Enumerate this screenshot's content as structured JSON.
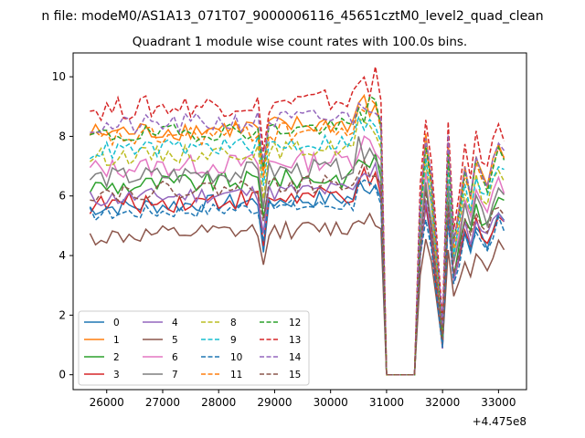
{
  "figure": {
    "suptitle": "n file: modeM0/AS1A13_071T07_9000006116_45651cztM0_level2_quad_clean",
    "offset_label": "+4.475e8"
  },
  "chart_data": {
    "type": "line",
    "title": "Quadrant 1 module wise count rates with 100.0s bins.",
    "xlabel": "",
    "ylabel": "",
    "x_offset": 447500000,
    "xlim": [
      25400,
      33500
    ],
    "ylim": [
      -0.5,
      10.8
    ],
    "x_ticks": [
      26000,
      27000,
      28000,
      29000,
      30000,
      31000,
      32000,
      33000
    ],
    "y_ticks": [
      0,
      2,
      4,
      6,
      8,
      10
    ],
    "grid": false,
    "legend_position": "lower-left",
    "series": [
      {
        "name": "0",
        "color": "#1f77b4",
        "dash": "solid",
        "base": 5.6,
        "amp": 0.3,
        "spike": 6.5
      },
      {
        "name": "1",
        "color": "#ff7f0e",
        "dash": "solid",
        "base": 8.1,
        "amp": 0.35,
        "spike": 9.2
      },
      {
        "name": "2",
        "color": "#2ca02c",
        "dash": "solid",
        "base": 6.3,
        "amp": 0.35,
        "spike": 7.4
      },
      {
        "name": "3",
        "color": "#d62728",
        "dash": "solid",
        "base": 5.7,
        "amp": 0.35,
        "spike": 6.6
      },
      {
        "name": "4",
        "color": "#9467bd",
        "dash": "solid",
        "base": 5.9,
        "amp": 0.3,
        "spike": 6.8
      },
      {
        "name": "5",
        "color": "#8c564b",
        "dash": "solid",
        "base": 4.6,
        "amp": 0.3,
        "spike": 5.5
      },
      {
        "name": "6",
        "color": "#e377c2",
        "dash": "solid",
        "base": 6.9,
        "amp": 0.35,
        "spike": 8.0
      },
      {
        "name": "7",
        "color": "#7f7f7f",
        "dash": "solid",
        "base": 6.6,
        "amp": 0.35,
        "spike": 7.6
      },
      {
        "name": "8",
        "color": "#bcbd22",
        "dash": "dashed",
        "base": 7.3,
        "amp": 0.3,
        "spike": 8.3
      },
      {
        "name": "9",
        "color": "#17becf",
        "dash": "dashed",
        "base": 7.5,
        "amp": 0.3,
        "spike": 8.4
      },
      {
        "name": "10",
        "color": "#1f77b4",
        "dash": "dashed",
        "base": 5.4,
        "amp": 0.25,
        "spike": 6.2
      },
      {
        "name": "11",
        "color": "#ff7f0e",
        "dash": "dashed",
        "base": 7.9,
        "amp": 0.35,
        "spike": 9.0
      },
      {
        "name": "12",
        "color": "#2ca02c",
        "dash": "dashed",
        "base": 8.0,
        "amp": 0.3,
        "spike": 9.0
      },
      {
        "name": "13",
        "color": "#d62728",
        "dash": "dashed",
        "base": 8.9,
        "amp": 0.4,
        "spike": 10.0
      },
      {
        "name": "14",
        "color": "#9467bd",
        "dash": "dashed",
        "base": 8.3,
        "amp": 0.35,
        "spike": 9.5
      },
      {
        "name": "15",
        "color": "#8c564b",
        "dash": "dashed",
        "base": 6.1,
        "amp": 0.3,
        "spike": 7.0
      }
    ]
  }
}
